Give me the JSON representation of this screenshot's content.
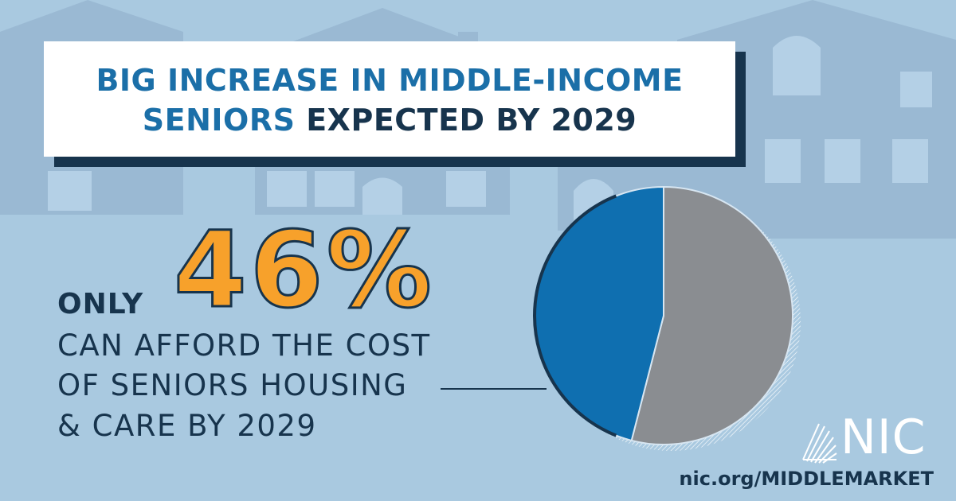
{
  "title": {
    "line1": "BIG INCREASE IN MIDDLE-INCOME",
    "line2_highlight": "SENIORS",
    "line2_rest": " EXPECTED BY 2029"
  },
  "callout": {
    "only": "ONLY",
    "percent": "46%",
    "lines": [
      "CAN AFFORD THE COST",
      "OF SENIORS HOUSING",
      "& CARE BY 2029"
    ]
  },
  "brand": {
    "logo_text": "NIC",
    "url": "nic.org/MIDDLEMARKET"
  },
  "colors": {
    "background": "#a9c9e0",
    "house_silhouette": "#9ab9d3",
    "title_blue": "#1b6fa8",
    "navy": "#17344d",
    "orange": "#f7a12b",
    "pie_affordable": "#0f6fb0",
    "pie_other": "#8a8d91"
  },
  "icons": [
    "nic-logo-icon"
  ],
  "chart_data": {
    "type": "pie",
    "slices": [
      {
        "value": 46,
        "color": "#0f6fb0"
      },
      {
        "value": 54,
        "color": "#8a8d91"
      }
    ],
    "legend": "none"
  }
}
